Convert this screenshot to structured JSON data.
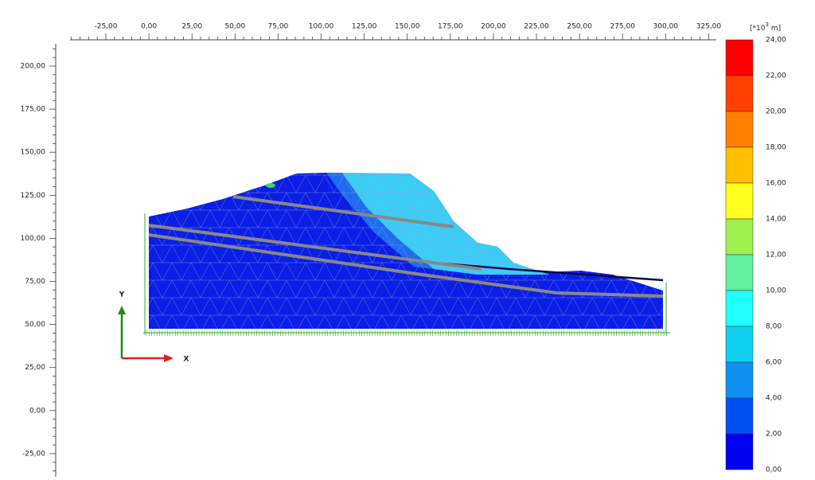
{
  "x_ruler": [
    "-25,00",
    "0,00",
    "25,00",
    "50,00",
    "75,00",
    "100,00",
    "125,00",
    "150,00",
    "175,00",
    "200,00",
    "225,00",
    "250,00",
    "275,00",
    "300,00",
    "325,00"
  ],
  "y_ruler": [
    "200,00",
    "175,00",
    "150,00",
    "125,00",
    "100,00",
    "75,00",
    "50,00",
    "25,00",
    "0,00",
    "-25,00"
  ],
  "axes": {
    "y": "Y",
    "x": "X"
  },
  "legend": {
    "unit": {
      "prefix": "[*10",
      "exponent": "3",
      "suffix": " m]"
    },
    "labels": [
      "24,00",
      "22,00",
      "20,00",
      "18,00",
      "16,00",
      "14,00",
      "12,00",
      "10,00",
      "8,00",
      "6,00",
      "4,00",
      "2,00",
      "0,00"
    ]
  }
}
